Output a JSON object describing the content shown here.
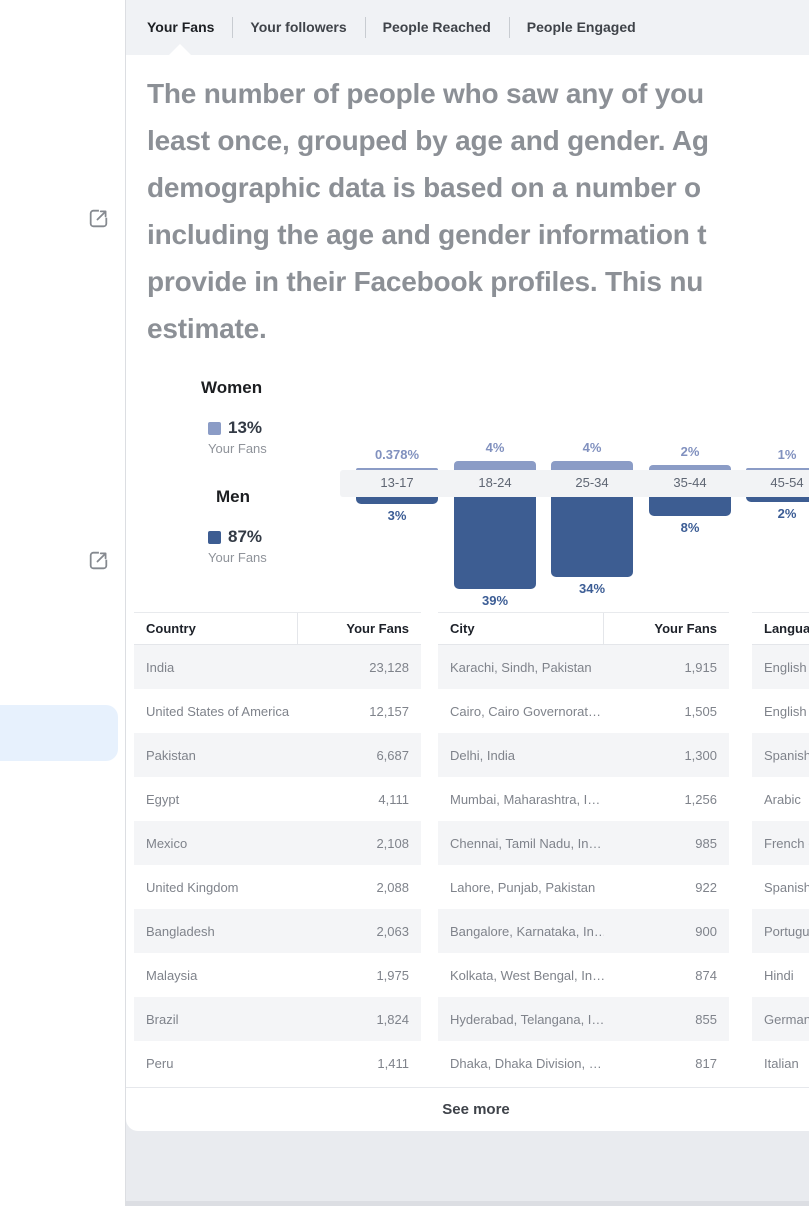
{
  "tabs": [
    {
      "label": "Your Fans",
      "active": true
    },
    {
      "label": "Your followers",
      "active": false
    },
    {
      "label": "People Reached",
      "active": false
    },
    {
      "label": "People Engaged",
      "active": false
    }
  ],
  "description_lines": [
    "The number of people who saw any of you",
    "least once, grouped by age and gender. Ag",
    "demographic data is based on a number o",
    "including the age and gender information t",
    "provide in their Facebook profiles. This nu",
    "estimate."
  ],
  "legend": {
    "women_title": "Women",
    "women_pct": "13%",
    "women_caption": "Your Fans",
    "men_title": "Men",
    "men_pct": "87%",
    "men_caption": "Your Fans"
  },
  "chart_data": {
    "type": "bar",
    "orientation": "diverging-vertical",
    "unit": "percent of Your Fans",
    "categories": [
      "13-17",
      "18-24",
      "25-34",
      "35-44",
      "45-54"
    ],
    "series": [
      {
        "name": "Women",
        "color": "#8b9cc6",
        "values": [
          0.378,
          4,
          4,
          2,
          1
        ],
        "labels": [
          "0.378%",
          "4%",
          "4%",
          "2%",
          "1%"
        ]
      },
      {
        "name": "Men",
        "color": "#3d5d92",
        "values": [
          3,
          39,
          34,
          8,
          2
        ],
        "labels": [
          "3%",
          "39%",
          "34%",
          "8%",
          "2%"
        ]
      }
    ],
    "legend_position": "left",
    "totals": {
      "Women": "13%",
      "Men": "87%"
    }
  },
  "tables": [
    {
      "headers": [
        "Country",
        "Your Fans"
      ],
      "rows": [
        [
          "India",
          "23,128"
        ],
        [
          "United States of America",
          "12,157"
        ],
        [
          "Pakistan",
          "6,687"
        ],
        [
          "Egypt",
          "4,111"
        ],
        [
          "Mexico",
          "2,108"
        ],
        [
          "United Kingdom",
          "2,088"
        ],
        [
          "Bangladesh",
          "2,063"
        ],
        [
          "Malaysia",
          "1,975"
        ],
        [
          "Brazil",
          "1,824"
        ],
        [
          "Peru",
          "1,411"
        ]
      ]
    },
    {
      "headers": [
        "City",
        "Your Fans"
      ],
      "rows": [
        [
          "Karachi, Sindh, Pakistan",
          "1,915"
        ],
        [
          "Cairo, Cairo Governorat…",
          "1,505"
        ],
        [
          "Delhi, India",
          "1,300"
        ],
        [
          "Mumbai, Maharashtra, I…",
          "1,256"
        ],
        [
          "Chennai, Tamil Nadu, In…",
          "985"
        ],
        [
          "Lahore, Punjab, Pakistan",
          "922"
        ],
        [
          "Bangalore, Karnataka, In…",
          "900"
        ],
        [
          "Kolkata, West Bengal, In…",
          "874"
        ],
        [
          "Hyderabad, Telangana, I…",
          "855"
        ],
        [
          "Dhaka, Dhaka Division, …",
          "817"
        ]
      ]
    },
    {
      "headers": [
        "Language",
        ""
      ],
      "rows": [
        [
          "English (",
          ""
        ],
        [
          "English (",
          ""
        ],
        [
          "Spanish",
          ""
        ],
        [
          "Arabic",
          ""
        ],
        [
          "French (F",
          ""
        ],
        [
          "Spanish",
          ""
        ],
        [
          "Portugue",
          ""
        ],
        [
          "Hindi",
          ""
        ],
        [
          "German",
          ""
        ],
        [
          "Italian",
          ""
        ]
      ]
    }
  ],
  "see_more_label": "See more",
  "icons": {
    "external_link": "external-link-icon"
  },
  "colors": {
    "women": "#8b9cc6",
    "men": "#3d5d92",
    "nav_highlight": "#e7f1fd",
    "card_bg": "#ffffff",
    "page_bg": "#e9ebef",
    "tabbar_bg": "#f0f2f5"
  }
}
